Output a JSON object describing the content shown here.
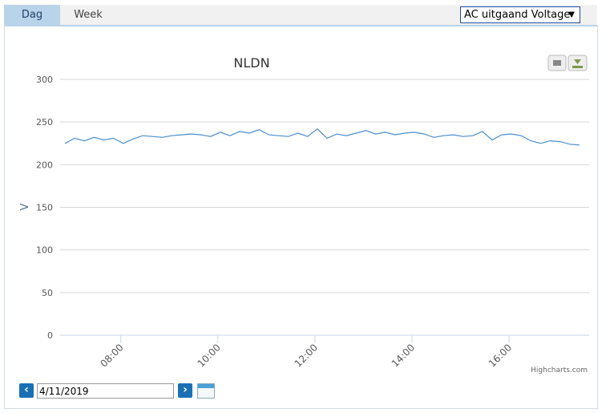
{
  "tabs": [
    "Dag",
    "Week"
  ],
  "dropdown": "AC uitgaand Voltage",
  "credits": "Highcharts.com",
  "date": "4/11/2019",
  "chart_data": {
    "type": "line",
    "title": "NLDN",
    "y_label": "V",
    "color": "#4a8fd0",
    "grid": true,
    "ylim": [
      0,
      300
    ],
    "yticks": [
      0,
      50,
      100,
      150,
      200,
      250,
      300
    ],
    "xlim": [
      6.75,
      17.65
    ],
    "xticks": [
      {
        "value": 8,
        "label": "08:00"
      },
      {
        "value": 10,
        "label": "10:00"
      },
      {
        "value": 12,
        "label": "12:00"
      },
      {
        "value": 14,
        "label": "14:00"
      },
      {
        "value": 16,
        "label": "16:00"
      }
    ],
    "x": [
      6.85,
      7.05,
      7.25,
      7.45,
      7.65,
      7.85,
      8.05,
      8.25,
      8.45,
      8.65,
      8.85,
      9.05,
      9.25,
      9.45,
      9.65,
      9.85,
      10.05,
      10.25,
      10.45,
      10.65,
      10.85,
      11.05,
      11.25,
      11.45,
      11.65,
      11.85,
      12.05,
      12.25,
      12.45,
      12.65,
      12.85,
      13.05,
      13.25,
      13.45,
      13.65,
      13.85,
      14.05,
      14.25,
      14.45,
      14.65,
      14.85,
      15.05,
      15.25,
      15.45,
      15.65,
      15.85,
      16.05,
      16.25,
      16.45,
      16.65,
      16.85,
      17.05,
      17.25,
      17.45
    ],
    "values": [
      225,
      231,
      228,
      232,
      229,
      231,
      225,
      230,
      234,
      233,
      232,
      234,
      235,
      236,
      235,
      233,
      238,
      234,
      239,
      237,
      241,
      235,
      234,
      233,
      237,
      233,
      242,
      231,
      236,
      234,
      237,
      240,
      236,
      238,
      235,
      237,
      238,
      236,
      232,
      234,
      235,
      233,
      234,
      239,
      229,
      235,
      236,
      234,
      228,
      225,
      228,
      227,
      224,
      223
    ]
  }
}
